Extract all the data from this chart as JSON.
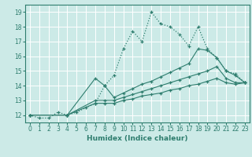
{
  "xlabel": "Humidex (Indice chaleur)",
  "xlim": [
    -0.5,
    23.5
  ],
  "ylim": [
    11.5,
    19.5
  ],
  "xticks": [
    0,
    1,
    2,
    3,
    4,
    5,
    6,
    7,
    8,
    9,
    10,
    11,
    12,
    13,
    14,
    15,
    16,
    17,
    18,
    19,
    20,
    21,
    22,
    23
  ],
  "yticks": [
    12,
    13,
    14,
    15,
    16,
    17,
    18,
    19
  ],
  "bg_color": "#cceae7",
  "line_color": "#2e7d6e",
  "grid_color": "#ffffff",
  "lines": [
    {
      "x": [
        0,
        1,
        2,
        3,
        4,
        5,
        6,
        7,
        8,
        9,
        10,
        11,
        12,
        13,
        14,
        15,
        16,
        17,
        18,
        19,
        20,
        21,
        22,
        23
      ],
      "y": [
        12.0,
        11.8,
        11.8,
        12.2,
        12.0,
        12.2,
        12.5,
        12.8,
        14.0,
        14.7,
        16.5,
        17.7,
        17.0,
        19.0,
        18.2,
        18.0,
        17.5,
        16.7,
        18.0,
        16.5,
        15.9,
        15.0,
        14.8,
        14.2
      ],
      "dotted": true
    },
    {
      "x": [
        0,
        4,
        7,
        8,
        9,
        10,
        11,
        12,
        13,
        14,
        15,
        16,
        17,
        18,
        19,
        20,
        21,
        22,
        23
      ],
      "y": [
        12.0,
        12.0,
        14.5,
        14.0,
        13.2,
        13.5,
        13.8,
        14.1,
        14.3,
        14.6,
        14.9,
        15.2,
        15.5,
        16.5,
        16.4,
        15.9,
        15.0,
        14.7,
        14.2
      ],
      "dotted": false
    },
    {
      "x": [
        0,
        4,
        7,
        8,
        9,
        10,
        11,
        12,
        13,
        14,
        15,
        16,
        17,
        18,
        19,
        20,
        21,
        22,
        23
      ],
      "y": [
        12.0,
        12.0,
        13.0,
        13.0,
        13.0,
        13.2,
        13.4,
        13.6,
        13.8,
        14.0,
        14.2,
        14.4,
        14.6,
        14.8,
        15.0,
        15.3,
        14.5,
        14.2,
        14.2
      ],
      "dotted": false
    },
    {
      "x": [
        0,
        4,
        7,
        8,
        9,
        10,
        11,
        12,
        13,
        14,
        15,
        16,
        17,
        18,
        19,
        20,
        21,
        22,
        23
      ],
      "y": [
        12.0,
        12.0,
        12.8,
        12.8,
        12.8,
        13.0,
        13.1,
        13.3,
        13.4,
        13.5,
        13.7,
        13.8,
        14.0,
        14.1,
        14.3,
        14.5,
        14.2,
        14.1,
        14.2
      ],
      "dotted": false
    }
  ]
}
